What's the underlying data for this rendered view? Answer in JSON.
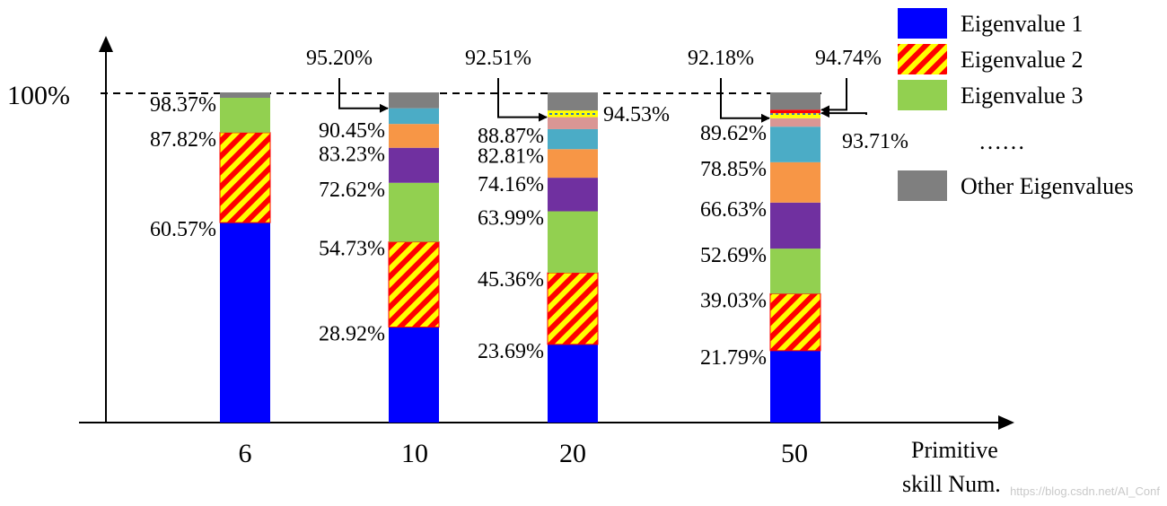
{
  "chart_data": {
    "type": "bar",
    "stacked": true,
    "y_reference_label": "100%",
    "x_axis_label_line1": "Primitive",
    "x_axis_label_line2": "skill Num.",
    "categories": [
      "6",
      "10",
      "20",
      "50"
    ],
    "ylim": [
      0,
      100
    ],
    "y_axis_values_shown": false,
    "legend_position": "top-right",
    "legend": [
      {
        "name": "Eigenvalue 1",
        "style": "solid",
        "color": "#0000ff"
      },
      {
        "name": "Eigenvalue 2",
        "style": "hatched",
        "color": "#ff0000",
        "hatch_color": "#ffff00"
      },
      {
        "name": "Eigenvalue 3",
        "style": "solid",
        "color": "#92d050"
      },
      {
        "name": "……",
        "style": "none"
      },
      {
        "name": "Other Eigenvalues",
        "style": "solid",
        "color": "#7f7f7f"
      }
    ],
    "segment_styles": {
      "e1": {
        "color": "#0000ff"
      },
      "e2": {
        "color": "#ff0000",
        "hatch": "#ffff00"
      },
      "e3": {
        "color": "#92d050"
      },
      "e4": {
        "color": "#7030a0"
      },
      "e5": {
        "color": "#f79646"
      },
      "e6": {
        "color": "#4bacc6"
      },
      "e7": {
        "color": "#da9694"
      },
      "e8": {
        "color": "#ffff00",
        "dotted": "#2e75b6"
      },
      "e9": {
        "color": "#ff0000"
      },
      "other": {
        "color": "#7f7f7f"
      }
    },
    "bars": [
      {
        "category": "6",
        "segments": [
          {
            "style": "e1",
            "cum": 60.57
          },
          {
            "style": "e2",
            "cum": 87.82
          },
          {
            "style": "e3",
            "cum": 98.37
          },
          {
            "style": "other",
            "cum": 100
          }
        ],
        "labels": [
          {
            "text": "60.57%",
            "value": 60.57
          },
          {
            "text": "87.82%",
            "value": 87.82
          },
          {
            "text": "98.37%",
            "value": 98.37
          }
        ]
      },
      {
        "category": "10",
        "segments": [
          {
            "style": "e1",
            "cum": 28.92
          },
          {
            "style": "e2",
            "cum": 54.73
          },
          {
            "style": "e3",
            "cum": 72.62
          },
          {
            "style": "e4",
            "cum": 83.23
          },
          {
            "style": "e5",
            "cum": 90.45
          },
          {
            "style": "e6",
            "cum": 95.2
          },
          {
            "style": "other",
            "cum": 100
          }
        ],
        "labels": [
          {
            "text": "28.92%",
            "value": 28.92
          },
          {
            "text": "54.73%",
            "value": 54.73
          },
          {
            "text": "72.62%",
            "value": 72.62
          },
          {
            "text": "83.23%",
            "value": 83.23
          },
          {
            "text": "90.45%",
            "value": 90.45
          }
        ],
        "callouts": [
          {
            "text": "95.20%",
            "value": 95.2,
            "side": "left"
          }
        ]
      },
      {
        "category": "20",
        "segments": [
          {
            "style": "e1",
            "cum": 23.69
          },
          {
            "style": "e2",
            "cum": 45.36
          },
          {
            "style": "e3",
            "cum": 63.99
          },
          {
            "style": "e4",
            "cum": 74.16
          },
          {
            "style": "e5",
            "cum": 82.81
          },
          {
            "style": "e6",
            "cum": 88.87
          },
          {
            "style": "e7",
            "cum": 92.51
          },
          {
            "style": "e8",
            "cum": 94.53
          },
          {
            "style": "other",
            "cum": 100
          }
        ],
        "labels": [
          {
            "text": "23.69%",
            "value": 23.69
          },
          {
            "text": "45.36%",
            "value": 45.36
          },
          {
            "text": "63.99%",
            "value": 63.99
          },
          {
            "text": "74.16%",
            "value": 74.16
          },
          {
            "text": "82.81%",
            "value": 82.81
          },
          {
            "text": "88.87%",
            "value": 88.87
          }
        ],
        "callouts": [
          {
            "text": "92.51%",
            "value": 92.51,
            "side": "left"
          },
          {
            "text": "94.53%",
            "value": 94.53,
            "side": "right-inline"
          }
        ]
      },
      {
        "category": "50",
        "segments": [
          {
            "style": "e1",
            "cum": 21.79
          },
          {
            "style": "e2",
            "cum": 39.03
          },
          {
            "style": "e3",
            "cum": 52.69
          },
          {
            "style": "e4",
            "cum": 66.63
          },
          {
            "style": "e5",
            "cum": 78.85
          },
          {
            "style": "e6",
            "cum": 89.62
          },
          {
            "style": "e7",
            "cum": 92.18
          },
          {
            "style": "e8",
            "cum": 93.71
          },
          {
            "style": "e9",
            "cum": 94.74
          },
          {
            "style": "other",
            "cum": 100
          }
        ],
        "labels": [
          {
            "text": "21.79%",
            "value": 21.79
          },
          {
            "text": "39.03%",
            "value": 39.03
          },
          {
            "text": "52.69%",
            "value": 52.69
          },
          {
            "text": "66.63%",
            "value": 66.63
          },
          {
            "text": "78.85%",
            "value": 78.85
          },
          {
            "text": "89.62%",
            "value": 89.62
          }
        ],
        "callouts": [
          {
            "text": "92.18%",
            "value": 92.18,
            "side": "left"
          },
          {
            "text": "94.74%",
            "value": 94.74,
            "side": "right-top"
          },
          {
            "text": "93.71%",
            "value": 93.71,
            "side": "right-bottom"
          }
        ]
      }
    ]
  },
  "watermark": "https://blog.csdn.net/AI_Conf"
}
